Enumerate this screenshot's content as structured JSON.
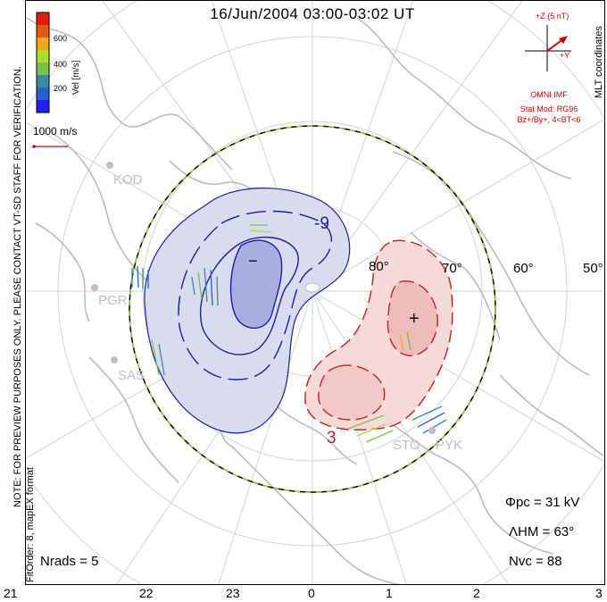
{
  "title": "16/Jun/2004 03:00-03:02 UT",
  "coord_label": "MLT coordinates",
  "side_note_1": "NOTE: FOR PREVIEW PURPOSES ONLY. PLEASE CONTACT VT-SD STAFF FOR VERIFICATION.",
  "side_note_2": "FitOrder: 8, mapEX format",
  "colorbar": {
    "title": "Vel [m/s]",
    "ticks": [
      "600",
      "400",
      "200"
    ],
    "colors": [
      "#1f1fff",
      "#2b5fd0",
      "#3c8aa0",
      "#78c24a",
      "#b2dc2c",
      "#f0a818",
      "#e35a0e",
      "#e01c0c"
    ]
  },
  "ref_vector_label": "1000 m/s",
  "imf": {
    "z_label": "+Z (5 nT)",
    "y_label": "+Y",
    "source": "OMNI IMF",
    "model": "Stat Mod: RG96",
    "condition": "Bz+/By+, 4<BT<6"
  },
  "sites": [
    "KOD",
    "PGR",
    "SAS",
    "STO",
    "PYK"
  ],
  "latitude_labels": [
    "80°",
    "70°",
    "60°",
    "50°"
  ],
  "contour_labels": [
    "-9",
    "3"
  ],
  "extrema_markers": [
    "−",
    "+"
  ],
  "stats": {
    "phi_pc": "Φpc = 31 kV",
    "lambda_hm": "ΛHM = 63°",
    "n_vc": "Nvc = 88",
    "n_rads": "Nrads = 5"
  },
  "mlt_ticks": [
    "21",
    "22",
    "23",
    "0",
    "1",
    "2",
    "3"
  ],
  "colors": {
    "negative_contour": "#1c1ca8",
    "negative_fill": "#d9dcef",
    "positive_contour": "#cc1c1c",
    "positive_fill": "#f6dada",
    "grid": "#d2d2d2",
    "coast": "#bcbcbc",
    "hmb_dash": "#9ad23c"
  }
}
